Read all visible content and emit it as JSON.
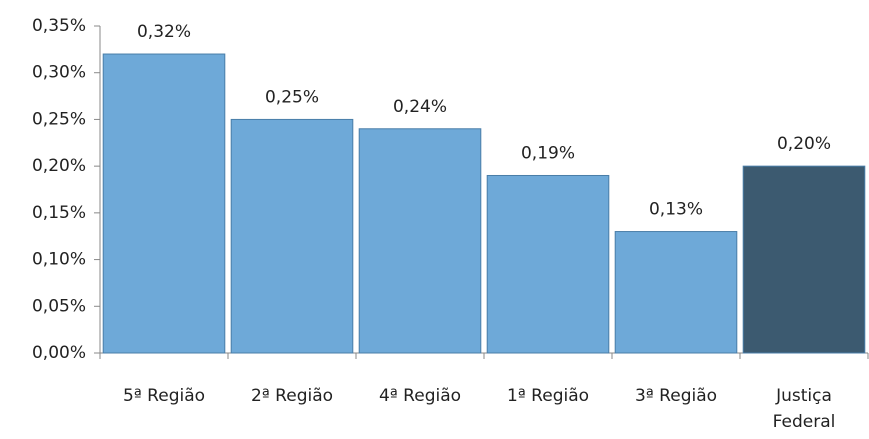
{
  "chart_data": {
    "type": "bar",
    "categories": [
      "5ª Região",
      "2ª Região",
      "4ª Região",
      "1ª Região",
      "3ª Região",
      "Justiça Federal"
    ],
    "values": [
      0.32,
      0.25,
      0.24,
      0.19,
      0.13,
      0.2
    ],
    "value_labels": [
      "0,32%",
      "0,25%",
      "0,24%",
      "0,19%",
      "0,13%",
      "0,20%"
    ],
    "colors": [
      "#6ea9d8",
      "#6ea9d8",
      "#6ea9d8",
      "#6ea9d8",
      "#6ea9d8",
      "#3c5a70"
    ],
    "ylim": [
      0,
      0.35
    ],
    "yticks": [
      {
        "value": 0,
        "label": "0,00%"
      },
      {
        "value": 0.05,
        "label": "0,05%"
      },
      {
        "value": 0.1,
        "label": "0,10%"
      },
      {
        "value": 0.15,
        "label": "0,15%"
      },
      {
        "value": 0.2,
        "label": "0,20%"
      },
      {
        "value": 0.25,
        "label": "0,25%"
      },
      {
        "value": 0.3,
        "label": "0,30%"
      },
      {
        "value": 0.35,
        "label": "0,35%"
      }
    ]
  }
}
